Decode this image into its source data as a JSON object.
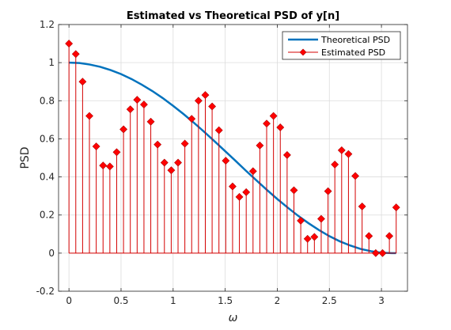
{
  "chart_data": {
    "type": "line",
    "title": "Estimated vs Theoretical PSD of y[n]",
    "xlabel": "ω",
    "ylabel": "PSD",
    "xlim": [
      -0.1,
      3.25
    ],
    "ylim": [
      -0.2,
      1.2
    ],
    "xticks": [
      "0",
      "0.5",
      "1",
      "1.5",
      "2",
      "2.5",
      "3"
    ],
    "xtick_values": [
      0,
      0.5,
      1,
      1.5,
      2,
      2.5,
      3
    ],
    "yticks": [
      "-0.2",
      "0",
      "0.2",
      "0.4",
      "0.6",
      "0.8",
      "1",
      "1.2"
    ],
    "ytick_values": [
      -0.2,
      0,
      0.2,
      0.4,
      0.6,
      0.8,
      1,
      1.2
    ],
    "grid": true,
    "legend_position": "top-right",
    "series": [
      {
        "name": "Theoretical PSD",
        "kind": "line",
        "color": "#0072bd",
        "x": [
          0,
          0.1,
          0.2,
          0.3,
          0.4,
          0.5,
          0.6,
          0.7,
          0.8,
          0.9,
          1.0,
          1.1,
          1.2,
          1.3,
          1.4,
          1.5,
          1.6,
          1.7,
          1.8,
          1.9,
          2.0,
          2.1,
          2.2,
          2.3,
          2.4,
          2.5,
          2.6,
          2.7,
          2.8,
          2.9,
          3.0,
          3.1,
          3.14
        ],
        "values": [
          1.0,
          0.998,
          0.99,
          0.978,
          0.961,
          0.94,
          0.914,
          0.884,
          0.851,
          0.814,
          0.773,
          0.73,
          0.684,
          0.636,
          0.586,
          0.535,
          0.484,
          0.432,
          0.382,
          0.332,
          0.284,
          0.239,
          0.196,
          0.157,
          0.121,
          0.089,
          0.062,
          0.04,
          0.022,
          0.01,
          0.002,
          0.0,
          0.0
        ]
      },
      {
        "name": "Estimated PSD",
        "kind": "stem",
        "color": "#ff0000",
        "x": [
          0,
          0.0654,
          0.1309,
          0.1963,
          0.2618,
          0.3272,
          0.3927,
          0.4581,
          0.5236,
          0.589,
          0.6545,
          0.7199,
          0.7854,
          0.8508,
          0.9163,
          0.9817,
          1.0472,
          1.1126,
          1.1781,
          1.2435,
          1.309,
          1.3744,
          1.4399,
          1.5053,
          1.5708,
          1.6362,
          1.7017,
          1.7671,
          1.8326,
          1.898,
          1.9635,
          2.0289,
          2.0944,
          2.1598,
          2.2253,
          2.2907,
          2.3562,
          2.4216,
          2.4871,
          2.5525,
          2.618,
          2.6834,
          2.7489,
          2.8143,
          2.8798,
          2.9452,
          3.0107,
          3.0761,
          3.1416
        ],
        "values": [
          1.1,
          1.045,
          0.9,
          0.72,
          0.56,
          0.46,
          0.455,
          0.53,
          0.65,
          0.755,
          0.805,
          0.78,
          0.69,
          0.57,
          0.475,
          0.435,
          0.475,
          0.575,
          0.705,
          0.8,
          0.83,
          0.77,
          0.645,
          0.485,
          0.35,
          0.295,
          0.32,
          0.43,
          0.565,
          0.68,
          0.72,
          0.66,
          0.515,
          0.33,
          0.17,
          0.075,
          0.085,
          0.18,
          0.325,
          0.465,
          0.54,
          0.52,
          0.405,
          0.245,
          0.09,
          0.0,
          0.0,
          0.09,
          0.24
        ]
      }
    ]
  },
  "legend": {
    "theoretical_label": "Theoretical PSD",
    "estimated_label": "Estimated PSD"
  }
}
